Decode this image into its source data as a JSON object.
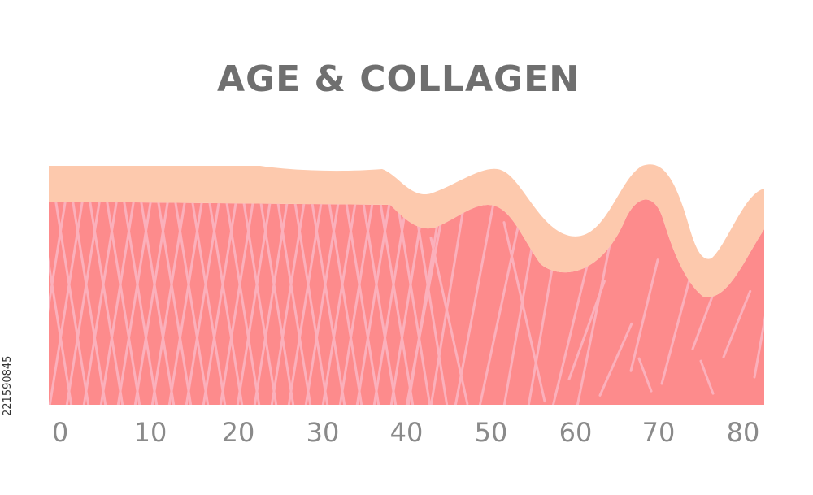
{
  "title": "AGE & COLLAGEN",
  "stock_id": "221590845",
  "axis": {
    "ticks": [
      "0",
      "10",
      "20",
      "30",
      "40",
      "50",
      "60",
      "70",
      "80"
    ]
  },
  "colors": {
    "dermis": "#fd8b8c",
    "epidermis": "#fdc9ad",
    "collagen_fibers": "#fbb0bb",
    "axis_text": "#8a8a8a",
    "title_text": "#6f6f6f"
  }
}
